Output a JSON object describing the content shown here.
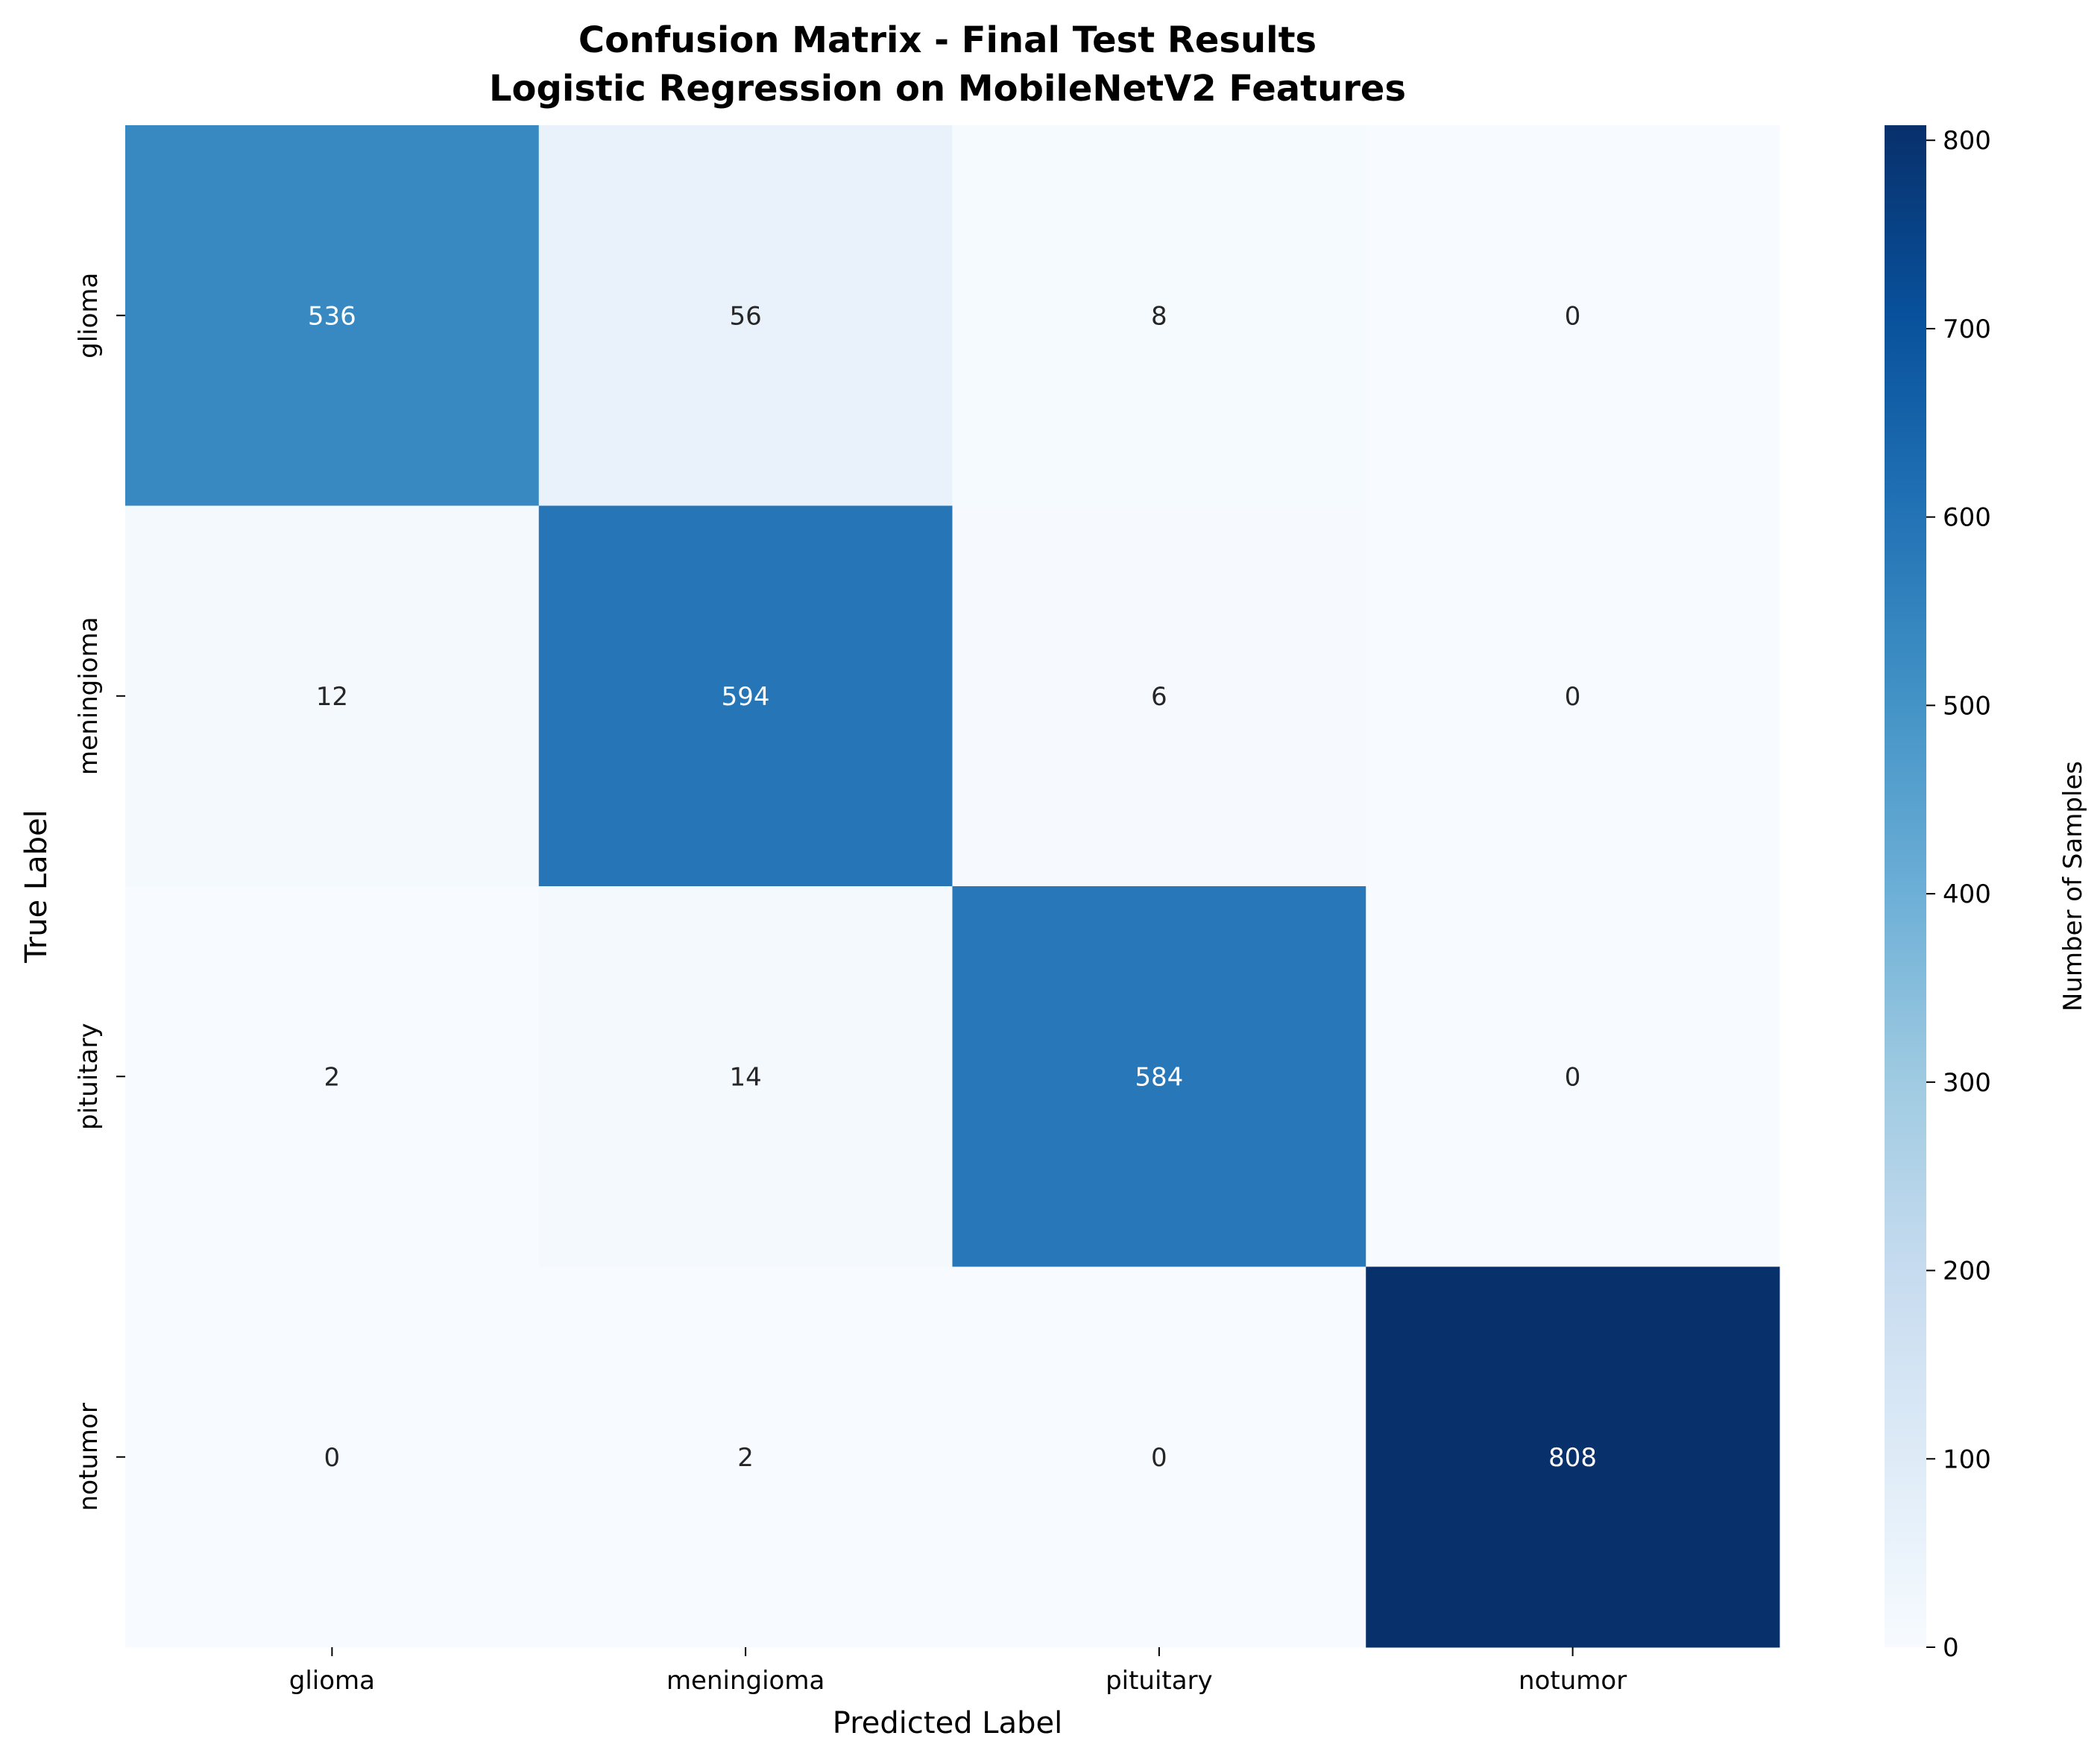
{
  "chart_data": {
    "type": "heatmap",
    "title_lines": [
      "Confusion Matrix - Final Test Results",
      "Logistic Regression on MobileNetV2 Features"
    ],
    "xlabel": "Predicted Label",
    "ylabel": "True Label",
    "x_categories": [
      "glioma",
      "meningioma",
      "pituitary",
      "notumor"
    ],
    "y_categories": [
      "glioma",
      "meningioma",
      "pituitary",
      "notumor"
    ],
    "matrix": [
      [
        536,
        56,
        8,
        0
      ],
      [
        12,
        594,
        6,
        0
      ],
      [
        2,
        14,
        584,
        0
      ],
      [
        0,
        2,
        0,
        808
      ]
    ],
    "colormap": "Blues",
    "colorbar": {
      "label": "Number of Samples",
      "range": [
        0,
        808
      ],
      "ticks": [
        0,
        100,
        200,
        300,
        400,
        500,
        600,
        700,
        800
      ]
    }
  }
}
